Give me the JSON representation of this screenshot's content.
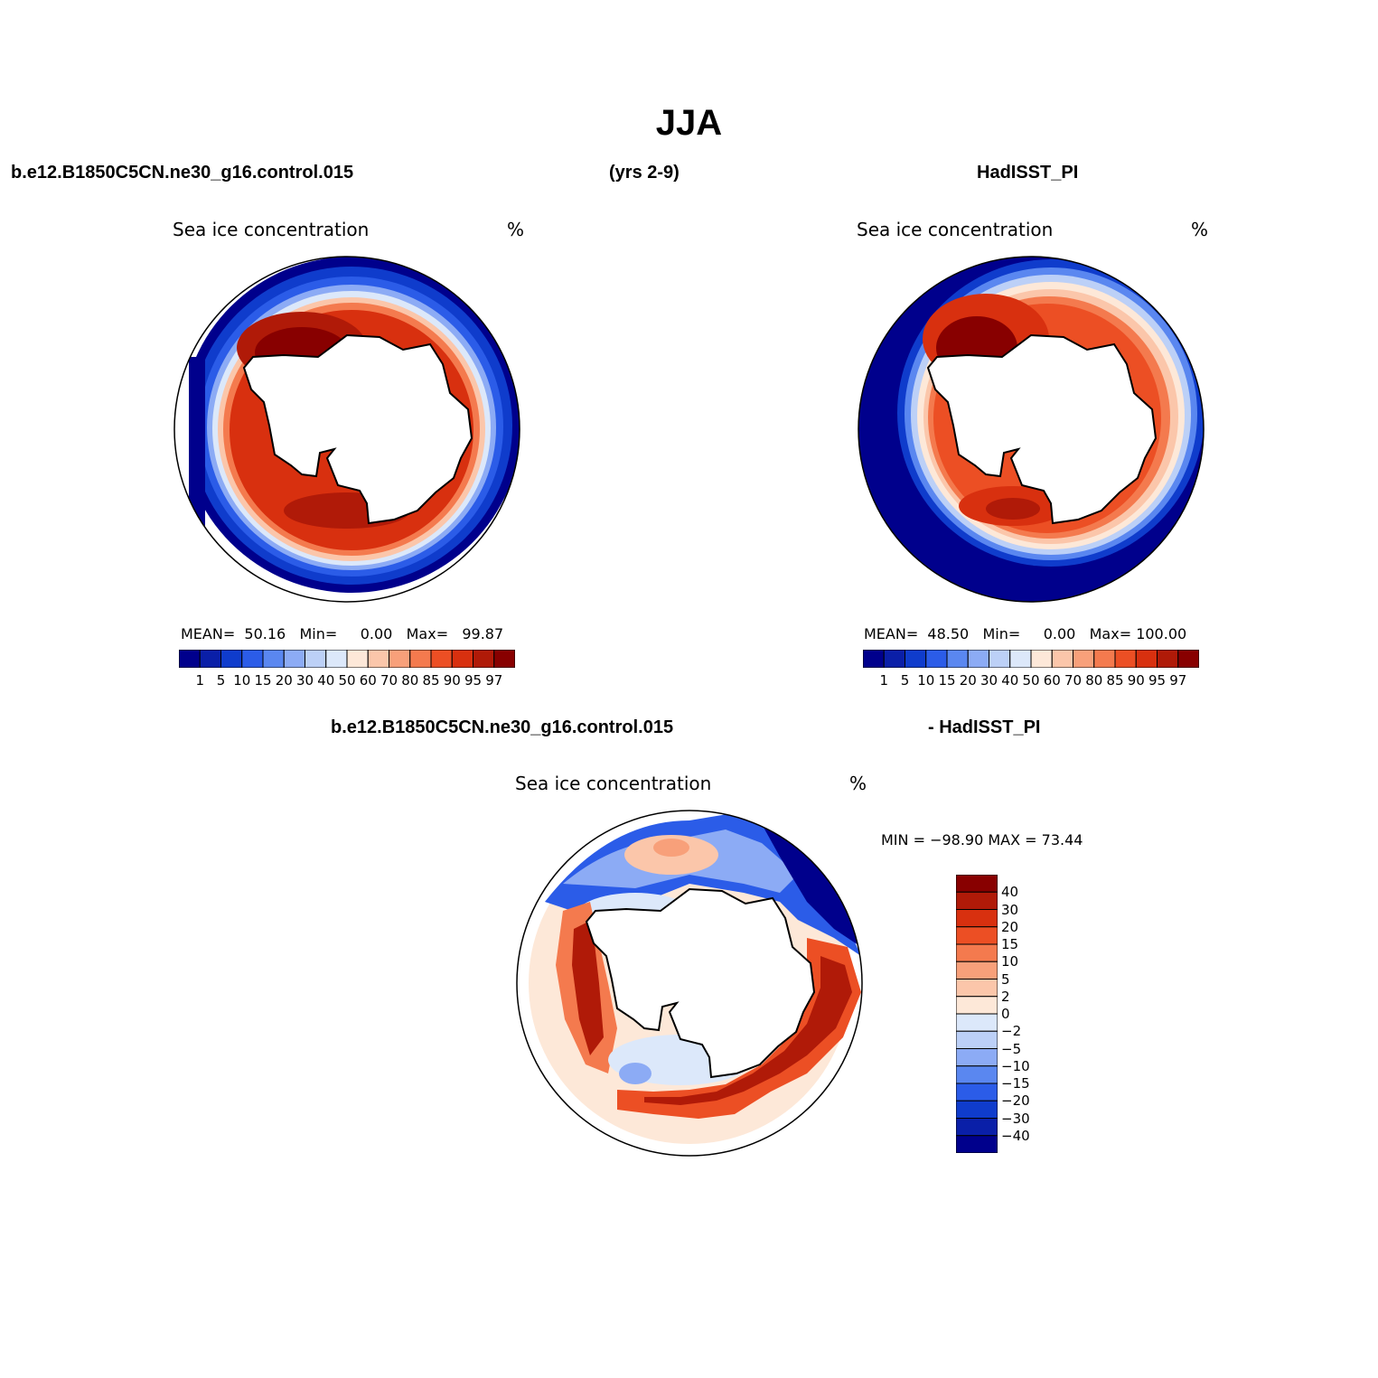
{
  "title": "JJA",
  "header": {
    "case_name": "b.e12.B1850C5CN.ne30_g16.control.015",
    "years": "(yrs 2-9)",
    "obs_name": "HadISST_PI"
  },
  "diff_header": {
    "case_name": "b.e12.B1850C5CN.ne30_g16.control.015",
    "obs_name": "- HadISST_PI"
  },
  "panels": {
    "model": {
      "title": "Sea ice concentration",
      "units": "%",
      "mean_label": "MEAN=",
      "mean": "50.16",
      "min_label": "Min=",
      "min": "0.00",
      "max_label": "Max=",
      "max": "99.87"
    },
    "obs": {
      "title": "Sea ice concentration",
      "units": "%",
      "mean_label": "MEAN=",
      "mean": "48.50",
      "min_label": "Min=",
      "min": "0.00",
      "max_label": "Max=",
      "max": "100.00"
    },
    "diff": {
      "title": "Sea ice concentration",
      "units": "%",
      "minmax_text": "MIN = −98.90 MAX =   73.44"
    }
  },
  "colorbar_abs": {
    "colors": [
      "#00008c",
      "#0a1fa8",
      "#0f3ccc",
      "#2b5ce8",
      "#5a87f0",
      "#8cabf5",
      "#bcd0f7",
      "#dce8fa",
      "#fde8d8",
      "#fbc6aa",
      "#f8a07a",
      "#f47a4e",
      "#ec4f24",
      "#d8300f",
      "#b01a08",
      "#880000"
    ],
    "ticks": [
      "1",
      "5",
      "10",
      "15",
      "20",
      "30",
      "40",
      "50",
      "60",
      "70",
      "80",
      "85",
      "90",
      "95",
      "97"
    ]
  },
  "colorbar_diff": {
    "colors": [
      "#880000",
      "#b01a08",
      "#d8300f",
      "#ec4f24",
      "#f47a4e",
      "#f8a07a",
      "#fbc6aa",
      "#fde8d8",
      "#dce8fa",
      "#bcd0f7",
      "#8cabf5",
      "#5a87f0",
      "#2b5ce8",
      "#0f3ccc",
      "#0a1fa8",
      "#00008c"
    ],
    "ticks": [
      "40",
      "30",
      "20",
      "15",
      "10",
      "5",
      "2",
      "0",
      "−2",
      "−5",
      "−10",
      "−15",
      "−20",
      "−30",
      "−40"
    ]
  }
}
